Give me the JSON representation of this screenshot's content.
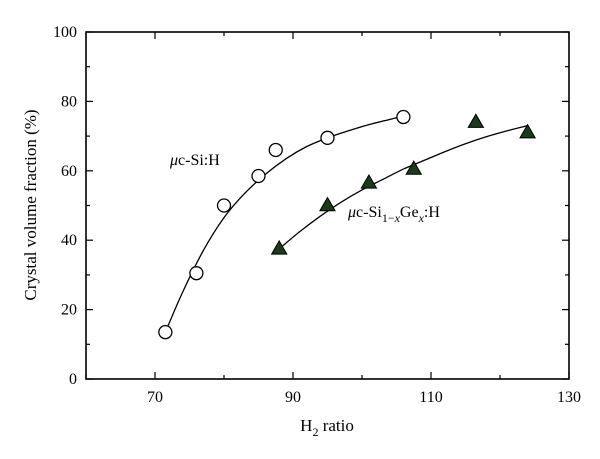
{
  "chart_data": {
    "type": "scatter",
    "xlabel": {
      "main": "H",
      "sub": "2",
      "rest": " ratio"
    },
    "ylabel": "Crystal volume fraction (%)",
    "xlim": [
      60,
      130
    ],
    "ylim": [
      0,
      100
    ],
    "xticks": [
      70,
      90,
      110,
      130
    ],
    "yticks": [
      0,
      20,
      40,
      60,
      80,
      100
    ],
    "grid": false,
    "series": [
      {
        "name": "μc-Si:H",
        "label_parts": [
          {
            "text": "μ",
            "style": "italic"
          },
          {
            "text": "c-Si:H"
          }
        ],
        "marker": "open-circle",
        "x": [
          71.5,
          76,
          80,
          85,
          87.5,
          95,
          106
        ],
        "y": [
          13.5,
          30.5,
          50,
          58.5,
          66,
          69.5,
          75.5
        ],
        "fit": {
          "x": [
            71.5,
            74,
            77,
            80,
            83,
            86,
            89,
            92,
            95,
            98,
            101,
            104,
            106
          ],
          "y": [
            13.5,
            25,
            37,
            46.5,
            53.5,
            59,
            63.5,
            67,
            69.5,
            71.5,
            73.3,
            74.8,
            75.8
          ]
        }
      },
      {
        "name": "μc-Si1−xGex:H",
        "label_parts": [
          {
            "text": "μ",
            "style": "italic"
          },
          {
            "text": "c-Si"
          },
          {
            "text": "1−",
            "shift": "sub"
          },
          {
            "text": "x",
            "shift": "sub",
            "style": "italic"
          },
          {
            "text": "Ge"
          },
          {
            "text": "x",
            "shift": "sub",
            "style": "italic"
          },
          {
            "text": ":H"
          }
        ],
        "marker": "filled-triangle",
        "color": "#1b3a1b",
        "x": [
          88,
          95,
          101,
          107.5,
          116.5,
          124
        ],
        "y": [
          37.5,
          50,
          56.5,
          60.5,
          74,
          71
        ],
        "fit": {
          "x": [
            88,
            91,
            94,
            97,
            100,
            103,
            106,
            109,
            112,
            115,
            118,
            121,
            124
          ],
          "y": [
            37.5,
            42.5,
            47,
            51,
            54.5,
            57.5,
            60.5,
            63,
            65.5,
            67.8,
            69.8,
            71.5,
            73
          ]
        }
      }
    ]
  }
}
